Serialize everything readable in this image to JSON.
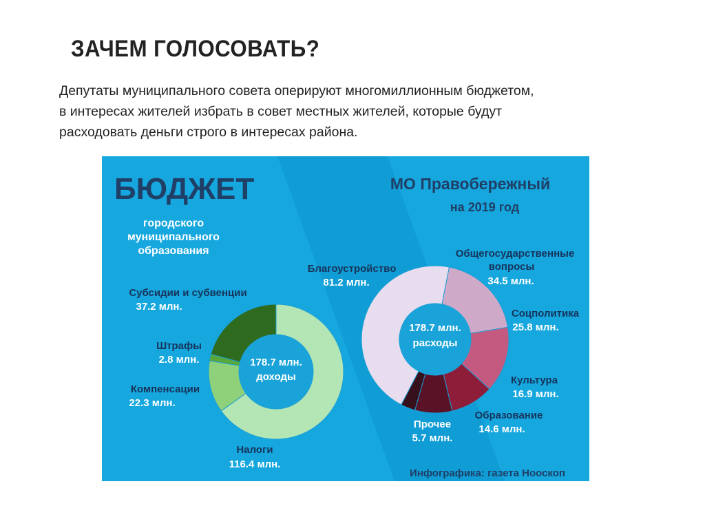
{
  "slide": {
    "title": "ЗАЧЕМ ГОЛОСОВАТЬ?",
    "text_lines": [
      "Депутаты муниципального совета оперируют многомиллионным бюджетом,",
      "в интересах жителей избрать в совет местных жителей, которые будут",
      "расходовать деньги строго в интересах района."
    ]
  },
  "infographic": {
    "heading": "БЮДЖЕТ",
    "subheading_lines": [
      "городского",
      "муниципального",
      "образования"
    ],
    "right_heading": "МО Правобережный",
    "right_subheading": "на 2019 год",
    "credit": "Инфографика: газета Нооскоп",
    "colors": {
      "background": "#16a7df",
      "background_stripe": "#0d93cc",
      "left_center": "#1aa3d9",
      "right_center": "#1aa3d9"
    }
  },
  "chart_data": [
    {
      "type": "pie",
      "center_label": [
        "178.7 млн.",
        "доходы"
      ],
      "total": 178.7,
      "unit": "млн.",
      "slices": [
        {
          "name": "Налоги",
          "value": 116.4,
          "value_label": "116.4 млн.",
          "color": "#b3e6b4"
        },
        {
          "name": "Компенсации",
          "value": 22.3,
          "value_label": "22.3 млн.",
          "color": "#8fd07a"
        },
        {
          "name": "Штрафы",
          "value": 2.8,
          "value_label": "2.8 млн.",
          "color": "#5aa83a"
        },
        {
          "name": "Субсидии и субвенции",
          "value": 37.2,
          "value_label": "37.2 млн.",
          "color": "#2f6b1e"
        }
      ]
    },
    {
      "type": "pie",
      "center_label": [
        "178.7 млн.",
        "расходы"
      ],
      "total": 178.7,
      "unit": "млн.",
      "slices": [
        {
          "name": "Общегосударственные вопросы",
          "value": 34.5,
          "value_label": "34.5 млн.",
          "color": "#cfa9c8"
        },
        {
          "name": "Соцполитика",
          "value": 25.8,
          "value_label": "25.8 млн.",
          "color": "#c45a80"
        },
        {
          "name": "Культура",
          "value": 16.9,
          "value_label": "16.9 млн.",
          "color": "#8e1d3a"
        },
        {
          "name": "Образование",
          "value": 14.6,
          "value_label": "14.6 млн.",
          "color": "#5a1226"
        },
        {
          "name": "Прочее",
          "value": 5.7,
          "value_label": "5.7 млн.",
          "color": "#36101a"
        },
        {
          "name": "Благоустройство",
          "value": 81.2,
          "value_label": "81.2 млн.",
          "color": "#e8dcef"
        }
      ]
    }
  ]
}
